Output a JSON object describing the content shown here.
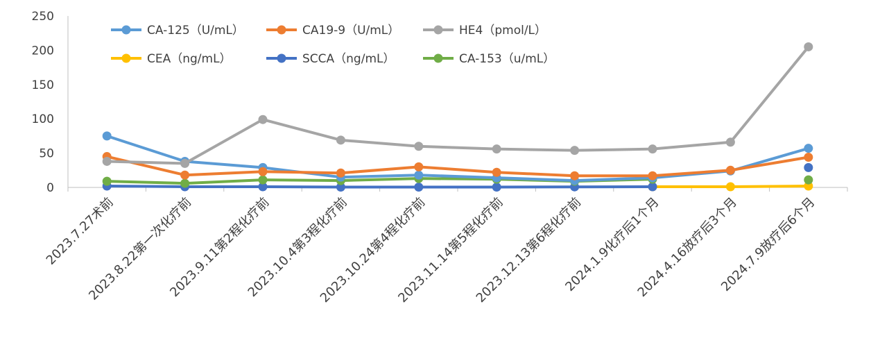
{
  "chart_data": {
    "type": "line",
    "title": "",
    "xlabel": "",
    "ylabel": "",
    "ylim": [
      0,
      250
    ],
    "yticks": [
      0,
      50,
      100,
      150,
      200,
      250
    ],
    "grid": false,
    "legend_position": "top-left",
    "categories": [
      "2023.7.27术前",
      "2023.8.22第一次化疗前",
      "2023.9.11第2程化疗前",
      "2023.10.4第3程化疗前",
      "2023.10.24第4程化疗前",
      "2023.11.14第5程化疗前",
      "2023.12.13第6程化疗前",
      "2024.1.9化疗后1个月",
      "2024.4.16放疗后3个月",
      "2024.7.9放疗后6个月"
    ],
    "series": [
      {
        "name": "CA-125（U/mL）",
        "color": "#5b9bd5",
        "values": [
          75,
          38,
          29,
          15,
          18,
          14,
          10,
          14,
          24,
          57
        ]
      },
      {
        "name": "CA19-9（U/mL）",
        "color": "#ed7d31",
        "values": [
          45,
          18,
          23,
          21,
          30,
          22,
          17,
          17,
          25,
          44
        ]
      },
      {
        "name": "HE4（pmol/L）",
        "color": "#a5a5a5",
        "values": [
          38,
          35,
          99,
          69,
          60,
          56,
          54,
          56,
          66,
          205
        ]
      },
      {
        "name": "CEA（ng/mL）",
        "color": "#ffc000",
        "values": [
          null,
          null,
          null,
          null,
          null,
          null,
          null,
          1,
          1,
          2
        ]
      },
      {
        "name": "SCCA（ng/mL）",
        "color": "#4472c4",
        "values": [
          2,
          1,
          1,
          0.5,
          0.5,
          0.5,
          0.8,
          1,
          null,
          29
        ]
      },
      {
        "name": "CA-153（u/mL）",
        "color": "#70ad47",
        "values": [
          9,
          6,
          11,
          10,
          13,
          12,
          9,
          12,
          null,
          11
        ]
      }
    ]
  }
}
